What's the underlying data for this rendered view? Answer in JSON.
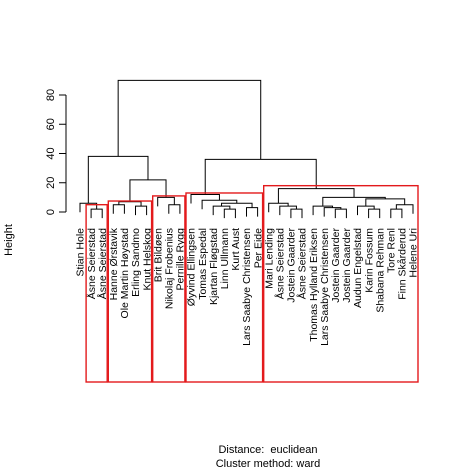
{
  "chart_data": {
    "type": "dendrogram",
    "title": "",
    "ylabel": "Height",
    "ylim": [
      0,
      100
    ],
    "yticks": [
      0,
      20,
      40,
      60,
      80
    ],
    "xlabel": "Distance:  euclidean",
    "sublabel": "Cluster method: ward",
    "colors": {
      "line": "#000000",
      "cluster_box": "#e31a1c"
    },
    "leaves": [
      "Stian Hole",
      "Åsne Seierstad",
      "Åsne Seierstad",
      "Hanne Ørstavik",
      "Ole Martin Høystad",
      "Erling Sandmo",
      "Knut Helskog",
      "Brit Bildøen",
      "Nikolaj Frobenius",
      "Pernille Rygg",
      "Øyvind Ellingsen",
      "Tomas Espedal",
      "Kjartan Fløgstad",
      "Linn Ullmann",
      "Kurt Aust",
      "Lars Saabye Christensen",
      "Per Eide",
      "Mari Lending",
      "Åsne Seierstad",
      "Jostein Gaarder",
      "Åsne Seierstad",
      "Thomas Hylland Eriksen",
      "Lars Saabye Christensen",
      "Jostein Gaarder",
      "Jostein Gaarder",
      "Audun Engelstad",
      "Karin Fossum",
      "Shabana Rehman",
      "Tore Renl",
      "Finn Skårderud",
      "Helene Uri"
    ],
    "merges": [
      {
        "a": 1,
        "b": 2,
        "height": 2
      },
      {
        "a": 5,
        "b": 6,
        "height": 4
      },
      {
        "a": 3,
        "b": 4,
        "height": 5
      },
      {
        "a": -3,
        "b": -2,
        "height": 7
      },
      {
        "a": 8,
        "b": 9,
        "height": 5
      },
      {
        "a": 7,
        "b": -5,
        "height": 10
      },
      {
        "a": 0,
        "b": -1,
        "height": 6
      },
      {
        "a": -6,
        "b": -4,
        "height": 22
      },
      {
        "a": -7,
        "b": -8,
        "height": 38
      },
      {
        "a": 13,
        "b": 14,
        "height": 2
      },
      {
        "a": 15,
        "b": 16,
        "height": 3
      },
      {
        "a": 12,
        "b": -10,
        "height": 4
      },
      {
        "a": -12,
        "b": -11,
        "height": 6
      },
      {
        "a": 11,
        "b": -13,
        "height": 8
      },
      {
        "a": 10,
        "b": -14,
        "height": 12
      },
      {
        "a": 19,
        "b": 20,
        "height": 2
      },
      {
        "a": 18,
        "b": -16,
        "height": 4
      },
      {
        "a": 17,
        "b": -17,
        "height": 6
      },
      {
        "a": 23,
        "b": 24,
        "height": 2
      },
      {
        "a": 22,
        "b": -19,
        "height": 3
      },
      {
        "a": 21,
        "b": -20,
        "height": 4
      },
      {
        "a": 26,
        "b": 27,
        "height": 2
      },
      {
        "a": 25,
        "b": -22,
        "height": 4
      },
      {
        "a": 28,
        "b": 29,
        "height": 2
      },
      {
        "a": -24,
        "b": 30,
        "height": 5
      },
      {
        "a": -23,
        "b": -25,
        "height": 9
      },
      {
        "a": -21,
        "b": -26,
        "height": 10
      },
      {
        "a": -18,
        "b": -27,
        "height": 16
      },
      {
        "a": -15,
        "b": -28,
        "height": 36
      },
      {
        "a": -9,
        "b": -29,
        "height": 90
      }
    ],
    "clusters": [
      {
        "from": 1,
        "to": 2
      },
      {
        "from": 3,
        "to": 6
      },
      {
        "from": 7,
        "to": 9
      },
      {
        "from": 10,
        "to": 16
      },
      {
        "from": 17,
        "to": 30
      }
    ]
  }
}
